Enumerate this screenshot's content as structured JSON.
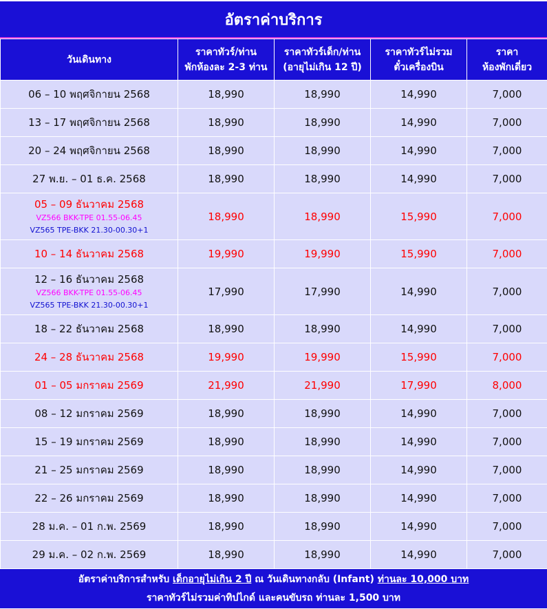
{
  "title": "อัตราค่าบริการ",
  "headers": [
    [
      "วันเดินทาง"
    ],
    [
      "ราคาทัวร์/ท่าน",
      "พักห้องละ 2-3 ท่าน"
    ],
    [
      "ราคาทัวร์เด็ก/ท่าน",
      "(อายุไม่เกิน 12 ปี)"
    ],
    [
      "ราคาทัวร์ไม่รวม",
      "ตั๋วเครื่องบิน"
    ],
    [
      "ราคา",
      "ห้องพักเดี่ยว"
    ]
  ],
  "rows": [
    {
      "date": "06 – 10 พฤศจิกายน 2568",
      "adult": "18,990",
      "child": "18,990",
      "noflight": "14,990",
      "single": "7,000",
      "highlight": false
    },
    {
      "date": "13 – 17 พฤศจิกายน 2568",
      "adult": "18,990",
      "child": "18,990",
      "noflight": "14,990",
      "single": "7,000",
      "highlight": false
    },
    {
      "date": "20 – 24 พฤศจิกายน 2568",
      "adult": "18,990",
      "child": "18,990",
      "noflight": "14,990",
      "single": "7,000",
      "highlight": false
    },
    {
      "date": "27 พ.ย. – 01 ธ.ค. 2568",
      "adult": "18,990",
      "child": "18,990",
      "noflight": "14,990",
      "single": "7,000",
      "highlight": false
    },
    {
      "date": "05 – 09 ธันวาคม 2568",
      "flight_out": "VZ566 BKK-TPE 01.55-06.45",
      "flight_in": "VZ565 TPE-BKK 21.30-00.30+1",
      "adult": "18,990",
      "child": "18,990",
      "noflight": "15,990",
      "single": "7,000",
      "highlight": true
    },
    {
      "date": "10 – 14 ธันวาคม 2568",
      "adult": "19,990",
      "child": "19,990",
      "noflight": "15,990",
      "single": "7,000",
      "highlight": true
    },
    {
      "date": "12 – 16 ธันวาคม 2568",
      "flight_out": "VZ566 BKK-TPE 01.55-06.45",
      "flight_in": "VZ565 TPE-BKK 21.30-00.30+1",
      "adult": "17,990",
      "child": "17,990",
      "noflight": "14,990",
      "single": "7,000",
      "highlight": false
    },
    {
      "date": "18 – 22 ธันวาคม 2568",
      "adult": "18,990",
      "child": "18,990",
      "noflight": "14,990",
      "single": "7,000",
      "highlight": false
    },
    {
      "date": "24 – 28 ธันวาคม 2568",
      "adult": "19,990",
      "child": "19,990",
      "noflight": "15,990",
      "single": "7,000",
      "highlight": true
    },
    {
      "date": "01 – 05 มกราคม 2569",
      "adult": "21,990",
      "child": "21,990",
      "noflight": "17,990",
      "single": "8,000",
      "highlight": true
    },
    {
      "date": "08 – 12 มกราคม 2569",
      "adult": "18,990",
      "child": "18,990",
      "noflight": "14,990",
      "single": "7,000",
      "highlight": false
    },
    {
      "date": "15 – 19 มกราคม 2569",
      "adult": "18,990",
      "child": "18,990",
      "noflight": "14,990",
      "single": "7,000",
      "highlight": false
    },
    {
      "date": "21 – 25 มกราคม 2569",
      "adult": "18,990",
      "child": "18,990",
      "noflight": "14,990",
      "single": "7,000",
      "highlight": false
    },
    {
      "date": "22 – 26 มกราคม 2569",
      "adult": "18,990",
      "child": "18,990",
      "noflight": "14,990",
      "single": "7,000",
      "highlight": false
    },
    {
      "date": "28 ม.ค. – 01 ก.พ. 2569",
      "adult": "18,990",
      "child": "18,990",
      "noflight": "14,990",
      "single": "7,000",
      "highlight": false
    },
    {
      "date": "29 ม.ค. – 02 ก.พ. 2569",
      "adult": "18,990",
      "child": "18,990",
      "noflight": "14,990",
      "single": "7,000",
      "highlight": false
    }
  ],
  "footer": {
    "line1_a": "อัตราค่าบริการสำหรับ ",
    "line1_b": "เด็กอายุไม่เกิน 2 ปี",
    "line1_c": " ณ วันเดินทางกลับ (Infant) ",
    "line1_d": "ท่านละ 10,000 บาท",
    "line2": "ราคาทัวร์ไม่รวมค่าทิปไกด์ และคนขับรถ ท่านละ 1,500 บาท"
  }
}
